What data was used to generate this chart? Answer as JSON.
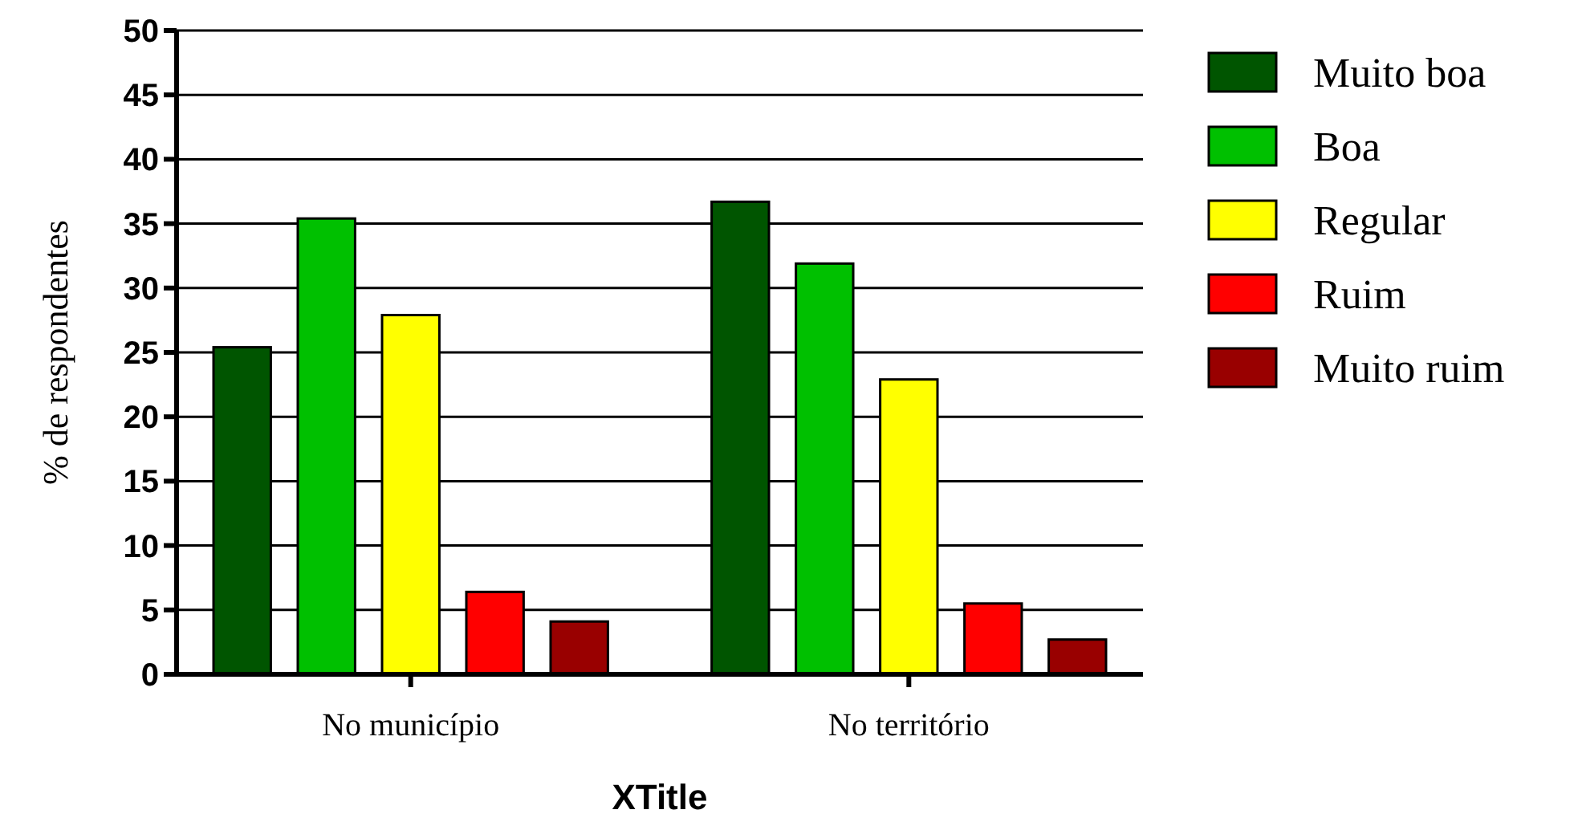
{
  "chart_data": {
    "type": "bar",
    "xlabel": "XTitle",
    "ylabel": "% de respondentes",
    "categories": [
      "No município",
      "No território"
    ],
    "series": [
      {
        "name": "Muito boa",
        "color": "#005500",
        "values": [
          25.4,
          36.7
        ]
      },
      {
        "name": "Boa",
        "color": "#00c000",
        "values": [
          35.4,
          31.9
        ]
      },
      {
        "name": "Regular",
        "color": "#ffff00",
        "values": [
          27.9,
          22.9
        ]
      },
      {
        "name": "Ruim",
        "color": "#ff0000",
        "values": [
          6.4,
          5.5
        ]
      },
      {
        "name": "Muito ruim",
        "color": "#990000",
        "values": [
          4.1,
          2.7
        ]
      }
    ],
    "ylim": [
      0,
      50
    ],
    "yticks": [
      0,
      5,
      10,
      15,
      20,
      25,
      30,
      35,
      40,
      45,
      50
    ],
    "grid": "y",
    "legend": "right"
  }
}
